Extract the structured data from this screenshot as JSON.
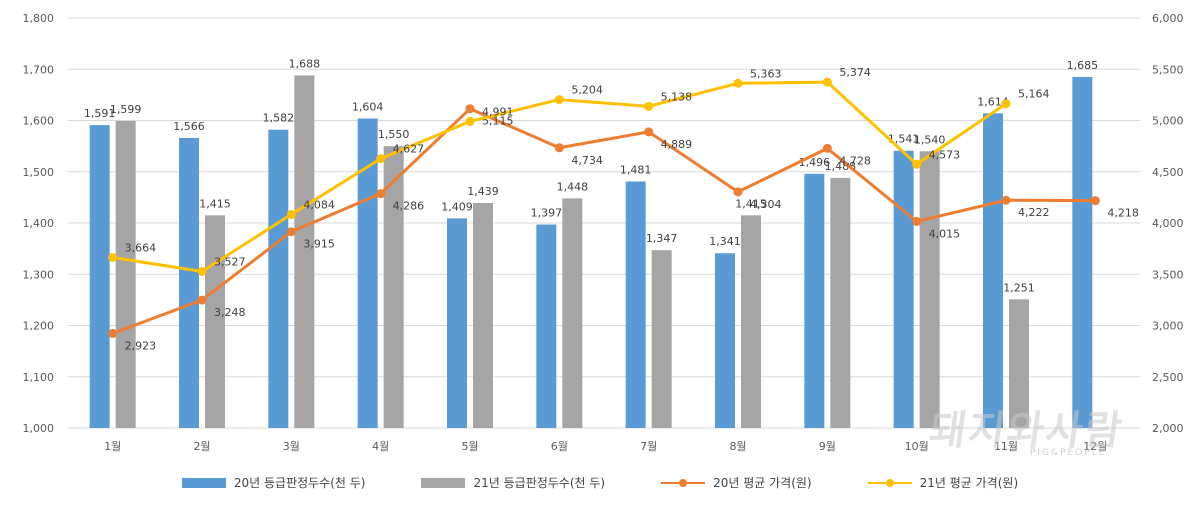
{
  "chart_data": {
    "type": "bar",
    "categories": [
      "1월",
      "2월",
      "3월",
      "4월",
      "5월",
      "6월",
      "7월",
      "8월",
      "9월",
      "10월",
      "11월",
      "12월"
    ],
    "series": [
      {
        "name": "20년 등급판정두수(천 두)",
        "kind": "bar",
        "axis": "left",
        "color": "#5b9bd5",
        "values": [
          1591,
          1566,
          1582,
          1604,
          1409,
          1397,
          1481,
          1341,
          1496,
          1541,
          1614,
          1685
        ]
      },
      {
        "name": "21년 등급판정두수(천 두)",
        "kind": "bar",
        "axis": "left",
        "color": "#a5a5a5",
        "values": [
          1599,
          1415,
          1688,
          1550,
          1439,
          1448,
          1347,
          1415,
          1488,
          1540,
          1251,
          null
        ]
      },
      {
        "name": "20년 평균 가격(원)",
        "kind": "line",
        "axis": "right",
        "color": "#ed7d31",
        "values": [
          2923,
          3248,
          3915,
          4286,
          5115,
          4734,
          4889,
          4304,
          4728,
          4015,
          4222,
          4218
        ]
      },
      {
        "name": "21년 평균 가격(원)",
        "kind": "line",
        "axis": "right",
        "color": "#ffc000",
        "values": [
          3664,
          3527,
          4084,
          4627,
          4991,
          5204,
          5138,
          5363,
          5374,
          4573,
          5164,
          null
        ]
      }
    ],
    "y_left": {
      "min": 1000,
      "max": 1800,
      "ticks": [
        "1,000",
        "1,100",
        "1,200",
        "1,300",
        "1,400",
        "1,500",
        "1,600",
        "1,700",
        "1,800"
      ]
    },
    "y_right": {
      "min": 2000,
      "max": 6000,
      "ticks": [
        "2,000",
        "2,500",
        "3,000",
        "3,500",
        "4,000",
        "4,500",
        "5,000",
        "5,500",
        "6,000"
      ]
    },
    "grid": true,
    "legend_position": "bottom"
  },
  "watermark": {
    "text": "돼지와사람",
    "sub": "PIG&PEOPLE"
  }
}
